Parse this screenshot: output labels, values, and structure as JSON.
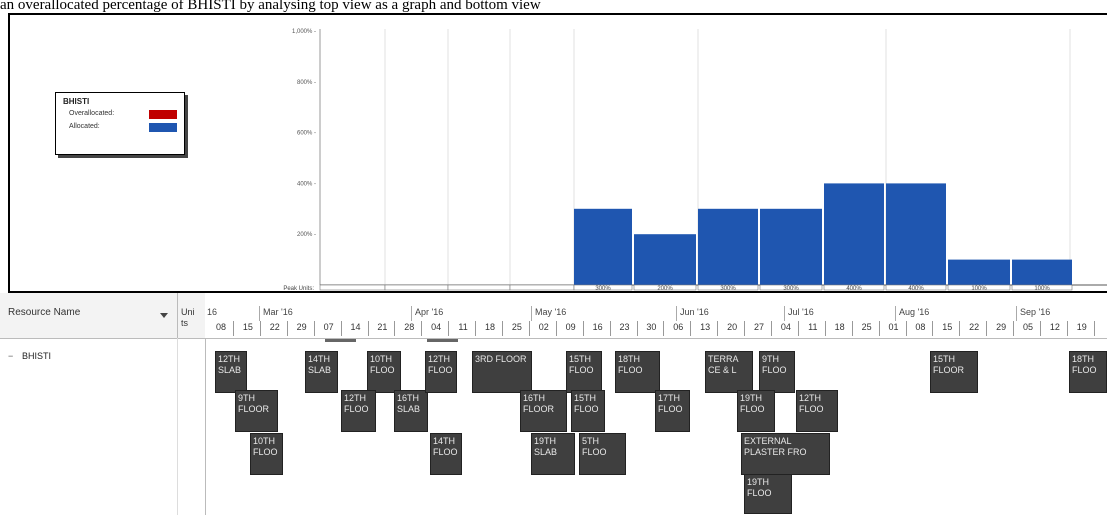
{
  "caption": "an overallocated percentage of BHISTI by analysing top view as a graph and bottom view",
  "legend": {
    "title": "BHISTI",
    "overallocated_label": "Overallocated:",
    "allocated_label": "Allocated:",
    "overallocated_color": "#c00000",
    "allocated_color": "#1f56b0"
  },
  "chart_data": {
    "type": "bar",
    "y_ticks": [
      "1,000% -",
      "800% -",
      "600% -",
      "400% -",
      "200% -"
    ],
    "ylim": [
      0,
      1000
    ],
    "peak_units_label": "Peak Units:",
    "bars": [
      {
        "value": 300,
        "label": "300%"
      },
      {
        "value": 200,
        "label": "200%"
      },
      {
        "value": 300,
        "label": "300%"
      },
      {
        "value": 300,
        "label": "300%"
      },
      {
        "value": 400,
        "label": "400%"
      },
      {
        "value": 400,
        "label": "400%"
      },
      {
        "value": 100,
        "label": "100%"
      },
      {
        "value": 100,
        "label": "100%"
      }
    ],
    "color": "#1f56b0"
  },
  "grid": {
    "resource_header": "Resource Name",
    "units_header": "Units",
    "resource_name": "BHISTI",
    "collapse_icon": "minus-icon",
    "months": [
      "16",
      "Mar '16",
      "Apr '16",
      "May '16",
      "Jun '16",
      "Jul '16",
      "Aug '16",
      "Sep '16"
    ],
    "weeks": [
      "08",
      "15",
      "22",
      "29",
      "07",
      "14",
      "21",
      "28",
      "04",
      "11",
      "18",
      "25",
      "02",
      "09",
      "16",
      "23",
      "30",
      "06",
      "13",
      "20",
      "27",
      "04",
      "11",
      "18",
      "25",
      "01",
      "08",
      "15",
      "22",
      "29",
      "05",
      "12",
      "19"
    ]
  },
  "tasks": [
    {
      "label": "12TH SLAB"
    },
    {
      "label": "9TH FLOOR"
    },
    {
      "label": "10TH FLOO"
    },
    {
      "label": "14TH SLAB"
    },
    {
      "label": "10TH FLOO"
    },
    {
      "label": "12TH FLOO"
    },
    {
      "label": "16TH SLAB"
    },
    {
      "label": "12TH FLOO"
    },
    {
      "label": "3RD FLOOR"
    },
    {
      "label": "14TH FLOO"
    },
    {
      "label": "16TH FLOOR"
    },
    {
      "label": "19TH SLAB"
    },
    {
      "label": "15TH FLOO"
    },
    {
      "label": "15TH FLOO"
    },
    {
      "label": "5TH FLOO"
    },
    {
      "label": "18TH FLOO"
    },
    {
      "label": "17TH FLOO"
    },
    {
      "label": "TERRA CE & L"
    },
    {
      "label": "9TH FLOO"
    },
    {
      "label": "19TH FLOO"
    },
    {
      "label": "12TH FLOO"
    },
    {
      "label": "EXTERNAL PLASTER FRO"
    },
    {
      "label": "19TH FLOO"
    },
    {
      "label": "15TH FLOOR"
    },
    {
      "label": "18TH FLOO"
    }
  ]
}
